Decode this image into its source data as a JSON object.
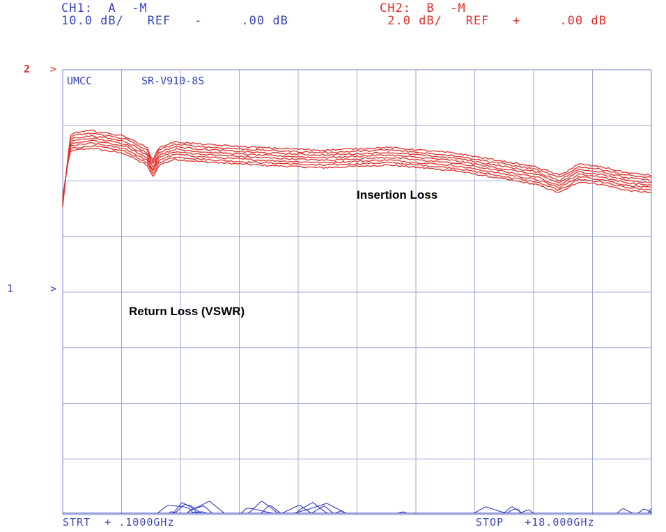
{
  "header": {
    "ch1_line1": "CH1:  A  -M",
    "ch1_line2": "10.0 dB/   REF   -     .00 dB",
    "ch2_line1": "CH2:  B  -M",
    "ch2_line2": " 2.0 dB/   REF   +     .00 dB"
  },
  "markers": {
    "ch2_num": "2",
    "ch2_arrow": ">",
    "ch1_num": "1",
    "ch1_arrow": ">"
  },
  "plot_text": {
    "company": "UMCC",
    "model": "SR-V910-8S",
    "insertion_label": "Insertion Loss",
    "return_label": "Return Loss (VSWR)",
    "start": "STRT  + .1000GHz",
    "stop": "STOP   +18.000GHz"
  },
  "colors": {
    "ch1": "#2f3cc0",
    "ch2": "#e0302a",
    "grid": "#9fa8d8"
  },
  "chart_data": {
    "type": "line",
    "x_unit": "GHz",
    "xlim": [
      0.1,
      18.0
    ],
    "grid": "10x8",
    "series": [
      {
        "channel": "CH2",
        "color": "#e0302a",
        "x": [
          0.1,
          0.3,
          1.0,
          2.0,
          2.8,
          3.5,
          4.5,
          6.0,
          8.0,
          10.0,
          12.0,
          13.5,
          14.5,
          15.2,
          15.8,
          16.5,
          17.2,
          18.0
        ],
        "values": [
          -3.3,
          -2.6,
          -2.5,
          -2.7,
          -3.2,
          -2.9,
          -3.0,
          -3.1,
          -3.2,
          -3.1,
          -3.3,
          -3.6,
          -3.8,
          -4.1,
          -3.7,
          -3.8,
          -4.0,
          -4.1
        ]
      },
      {
        "channel": "CH1",
        "color": "#2f3cc0",
        "x": [
          0.1,
          0.3,
          1.0,
          2.0,
          3.0,
          4.0,
          5.0,
          6.5,
          8.0,
          10.0,
          11.0,
          12.5,
          14.0,
          15.5,
          17.0,
          18.0
        ],
        "values": [
          -60,
          -43,
          -45,
          -44,
          -42,
          -40,
          -41,
          -40,
          -41,
          -42,
          -43,
          -42,
          -41,
          -43,
          -42,
          -41
        ]
      }
    ]
  }
}
